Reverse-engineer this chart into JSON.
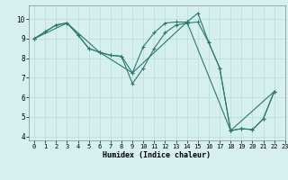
{
  "xlabel": "Humidex (Indice chaleur)",
  "bg_color": "#d6f0ef",
  "grid_color": "#b8dcd8",
  "line_color": "#2a7a6a",
  "xlim": [
    -0.5,
    23
  ],
  "ylim": [
    3.8,
    10.7
  ],
  "xticks": [
    0,
    1,
    2,
    3,
    4,
    5,
    6,
    7,
    8,
    9,
    10,
    11,
    12,
    13,
    14,
    15,
    16,
    17,
    18,
    19,
    20,
    21,
    22,
    23
  ],
  "yticks": [
    4,
    5,
    6,
    7,
    8,
    9,
    10
  ],
  "series": [
    {
      "x": [
        0,
        1,
        2,
        3,
        4,
        5,
        6,
        7,
        8,
        9,
        10,
        11,
        12,
        13,
        14,
        15,
        16,
        17,
        18,
        19,
        20,
        21,
        22
      ],
      "y": [
        9.0,
        9.35,
        9.7,
        9.8,
        9.2,
        8.5,
        8.3,
        8.15,
        8.1,
        7.25,
        8.6,
        9.3,
        9.8,
        9.85,
        9.85,
        10.3,
        8.8,
        7.5,
        4.3,
        4.4,
        4.35,
        4.9,
        6.3
      ]
    },
    {
      "x": [
        0,
        1,
        2,
        3,
        4,
        5,
        6,
        7,
        8,
        9,
        10,
        11,
        12,
        13,
        14,
        15,
        16,
        17,
        18,
        19,
        20,
        21,
        22
      ],
      "y": [
        9.0,
        9.35,
        9.7,
        9.8,
        9.2,
        8.5,
        8.3,
        8.15,
        8.1,
        6.7,
        7.5,
        8.5,
        9.3,
        9.7,
        9.8,
        9.85,
        8.8,
        7.5,
        4.3,
        4.4,
        4.35,
        4.9,
        6.3
      ]
    },
    {
      "x": [
        0,
        3,
        6,
        9,
        14,
        18,
        22
      ],
      "y": [
        9.0,
        9.8,
        8.3,
        7.25,
        9.85,
        4.3,
        6.3
      ]
    }
  ]
}
